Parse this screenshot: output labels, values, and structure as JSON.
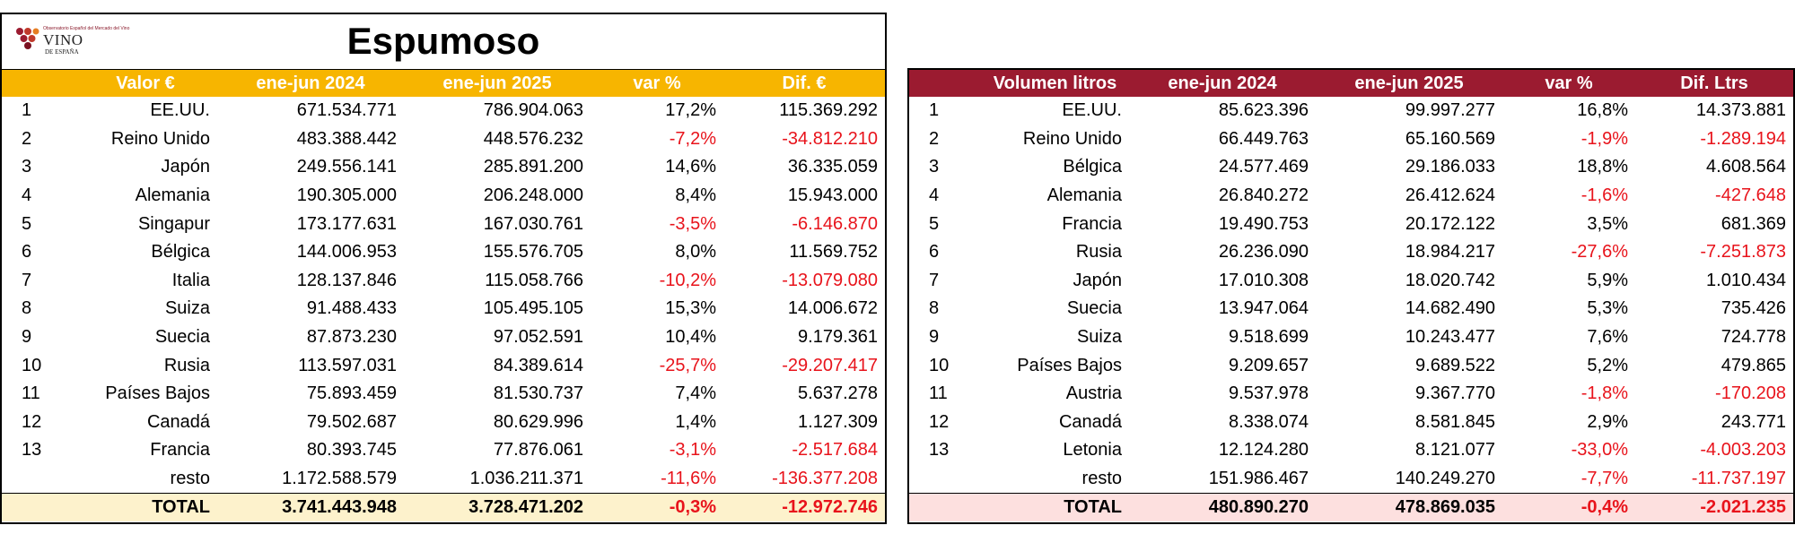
{
  "logo": {
    "top_text": "Observatorio Español del Mercado del Vino",
    "main": "VINO",
    "sub": "DE ESPAÑA"
  },
  "title": "Espumoso",
  "colors": {
    "value_header": "#f7b500",
    "volume_header": "#9b1b30",
    "negative": "#e8131b",
    "value_total_bg": "#fdf2cc",
    "volume_total_bg": "#fde0df"
  },
  "value_table": {
    "headers": [
      "",
      "Valor €",
      "ene-jun 2024",
      "ene-jun 2025",
      "var %",
      "Dif. €"
    ],
    "rows": [
      {
        "rank": "1",
        "country": "EE.UU.",
        "v2024": "671.534.771",
        "v2025": "786.904.063",
        "var": "17,2%",
        "dif": "115.369.292"
      },
      {
        "rank": "2",
        "country": "Reino Unido",
        "v2024": "483.388.442",
        "v2025": "448.576.232",
        "var": "-7,2%",
        "dif": "-34.812.210"
      },
      {
        "rank": "3",
        "country": "Japón",
        "v2024": "249.556.141",
        "v2025": "285.891.200",
        "var": "14,6%",
        "dif": "36.335.059"
      },
      {
        "rank": "4",
        "country": "Alemania",
        "v2024": "190.305.000",
        "v2025": "206.248.000",
        "var": "8,4%",
        "dif": "15.943.000"
      },
      {
        "rank": "5",
        "country": "Singapur",
        "v2024": "173.177.631",
        "v2025": "167.030.761",
        "var": "-3,5%",
        "dif": "-6.146.870"
      },
      {
        "rank": "6",
        "country": "Bélgica",
        "v2024": "144.006.953",
        "v2025": "155.576.705",
        "var": "8,0%",
        "dif": "11.569.752"
      },
      {
        "rank": "7",
        "country": "Italia",
        "v2024": "128.137.846",
        "v2025": "115.058.766",
        "var": "-10,2%",
        "dif": "-13.079.080"
      },
      {
        "rank": "8",
        "country": "Suiza",
        "v2024": "91.488.433",
        "v2025": "105.495.105",
        "var": "15,3%",
        "dif": "14.006.672"
      },
      {
        "rank": "9",
        "country": "Suecia",
        "v2024": "87.873.230",
        "v2025": "97.052.591",
        "var": "10,4%",
        "dif": "9.179.361"
      },
      {
        "rank": "10",
        "country": "Rusia",
        "v2024": "113.597.031",
        "v2025": "84.389.614",
        "var": "-25,7%",
        "dif": "-29.207.417"
      },
      {
        "rank": "11",
        "country": "Países Bajos",
        "v2024": "75.893.459",
        "v2025": "81.530.737",
        "var": "7,4%",
        "dif": "5.637.278"
      },
      {
        "rank": "12",
        "country": "Canadá",
        "v2024": "79.502.687",
        "v2025": "80.629.996",
        "var": "1,4%",
        "dif": "1.127.309"
      },
      {
        "rank": "13",
        "country": "Francia",
        "v2024": "80.393.745",
        "v2025": "77.876.061",
        "var": "-3,1%",
        "dif": "-2.517.684"
      },
      {
        "rank": "",
        "country": "resto",
        "v2024": "1.172.588.579",
        "v2025": "1.036.211.371",
        "var": "-11,6%",
        "dif": "-136.377.208"
      }
    ],
    "total": {
      "label": "TOTAL",
      "v2024": "3.741.443.948",
      "v2025": "3.728.471.202",
      "var": "-0,3%",
      "dif": "-12.972.746"
    }
  },
  "volume_table": {
    "headers": [
      "",
      "Volumen litros",
      "ene-jun 2024",
      "ene-jun 2025",
      "var %",
      "Dif. Ltrs"
    ],
    "rows": [
      {
        "rank": "1",
        "country": "EE.UU.",
        "v2024": "85.623.396",
        "v2025": "99.997.277",
        "var": "16,8%",
        "dif": "14.373.881"
      },
      {
        "rank": "2",
        "country": "Reino Unido",
        "v2024": "66.449.763",
        "v2025": "65.160.569",
        "var": "-1,9%",
        "dif": "-1.289.194"
      },
      {
        "rank": "3",
        "country": "Bélgica",
        "v2024": "24.577.469",
        "v2025": "29.186.033",
        "var": "18,8%",
        "dif": "4.608.564"
      },
      {
        "rank": "4",
        "country": "Alemania",
        "v2024": "26.840.272",
        "v2025": "26.412.624",
        "var": "-1,6%",
        "dif": "-427.648"
      },
      {
        "rank": "5",
        "country": "Francia",
        "v2024": "19.490.753",
        "v2025": "20.172.122",
        "var": "3,5%",
        "dif": "681.369"
      },
      {
        "rank": "6",
        "country": "Rusia",
        "v2024": "26.236.090",
        "v2025": "18.984.217",
        "var": "-27,6%",
        "dif": "-7.251.873"
      },
      {
        "rank": "7",
        "country": "Japón",
        "v2024": "17.010.308",
        "v2025": "18.020.742",
        "var": "5,9%",
        "dif": "1.010.434"
      },
      {
        "rank": "8",
        "country": "Suecia",
        "v2024": "13.947.064",
        "v2025": "14.682.490",
        "var": "5,3%",
        "dif": "735.426"
      },
      {
        "rank": "9",
        "country": "Suiza",
        "v2024": "9.518.699",
        "v2025": "10.243.477",
        "var": "7,6%",
        "dif": "724.778"
      },
      {
        "rank": "10",
        "country": "Países Bajos",
        "v2024": "9.209.657",
        "v2025": "9.689.522",
        "var": "5,2%",
        "dif": "479.865"
      },
      {
        "rank": "11",
        "country": "Austria",
        "v2024": "9.537.978",
        "v2025": "9.367.770",
        "var": "-1,8%",
        "dif": "-170.208"
      },
      {
        "rank": "12",
        "country": "Canadá",
        "v2024": "8.338.074",
        "v2025": "8.581.845",
        "var": "2,9%",
        "dif": "243.771"
      },
      {
        "rank": "13",
        "country": "Letonia",
        "v2024": "12.124.280",
        "v2025": "8.121.077",
        "var": "-33,0%",
        "dif": "-4.003.203"
      },
      {
        "rank": "",
        "country": "resto",
        "v2024": "151.986.467",
        "v2025": "140.249.270",
        "var": "-7,7%",
        "dif": "-11.737.197"
      }
    ],
    "total": {
      "label": "TOTAL",
      "v2024": "480.890.270",
      "v2025": "478.869.035",
      "var": "-0,4%",
      "dif": "-2.021.235"
    }
  }
}
